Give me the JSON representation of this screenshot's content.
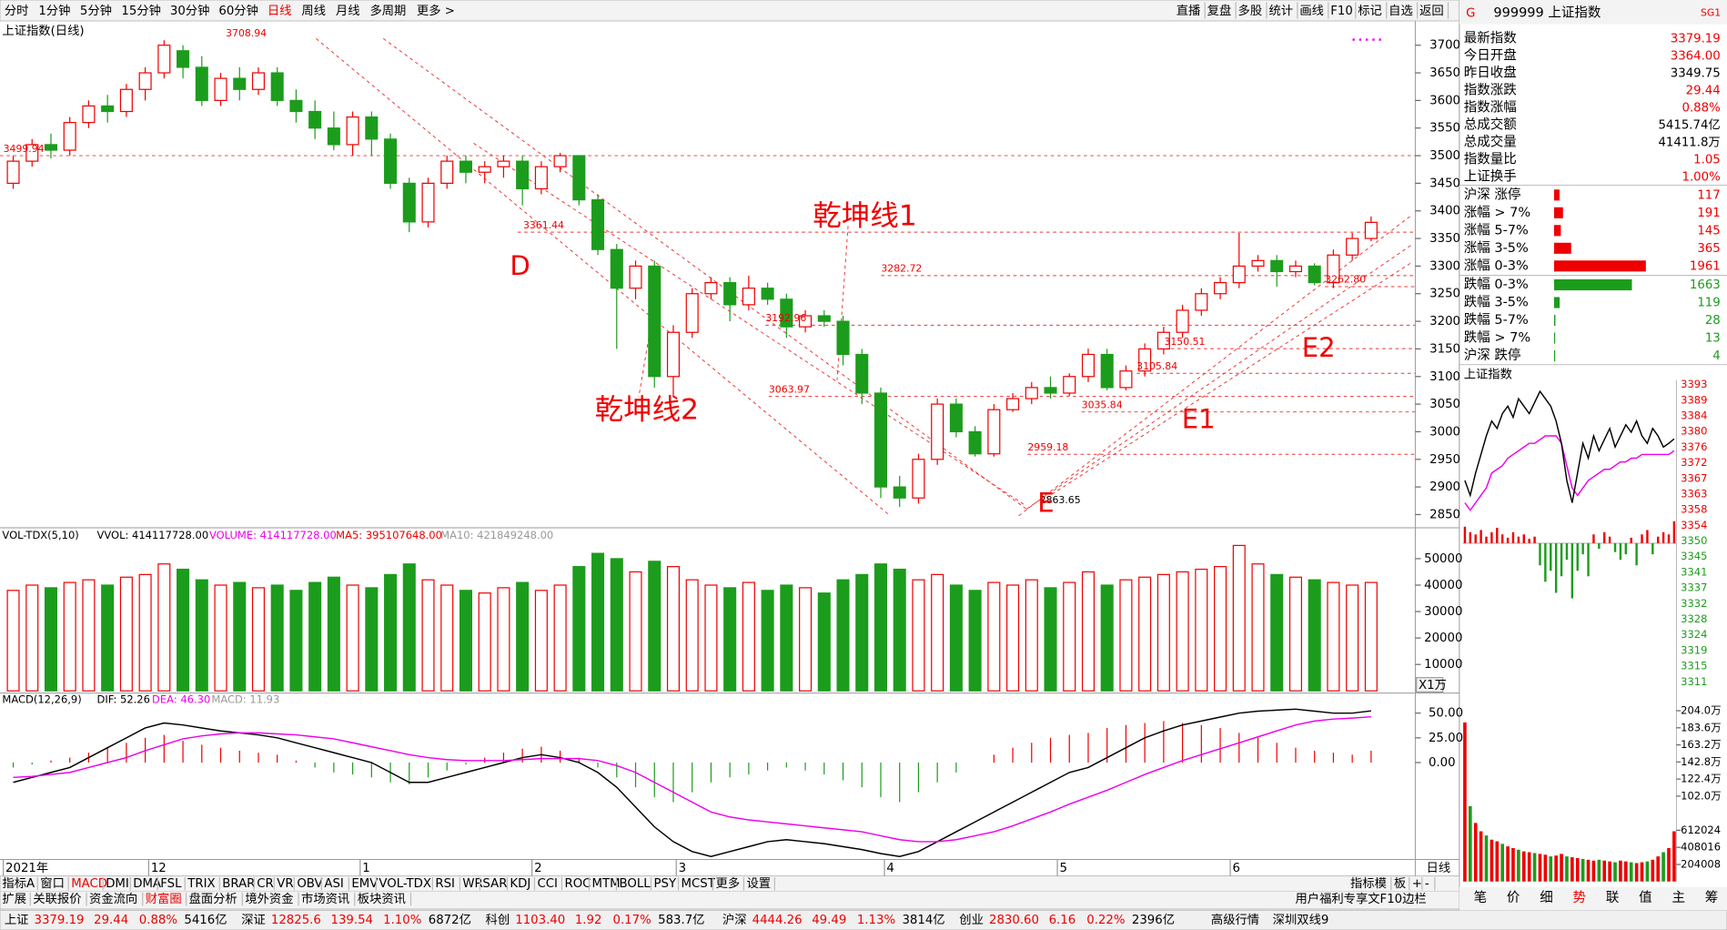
{
  "toolbar": {
    "periods": [
      "分时",
      "1分钟",
      "5分钟",
      "15分钟",
      "30分钟",
      "60分钟",
      "日线",
      "周线",
      "月线",
      "多周期",
      "更多 >"
    ],
    "tools": [
      "直播",
      "复盘",
      "多股",
      "统计",
      "画线",
      "F10",
      "标记",
      "自选",
      "返回"
    ]
  },
  "main_chart": {
    "title": "上证指数(日线)",
    "ylim": [
      2830,
      3742
    ],
    "yticks": [
      2850,
      2900,
      2950,
      3000,
      3050,
      3100,
      3150,
      3200,
      3250,
      3300,
      3350,
      3400,
      3450,
      3500,
      3550,
      3600,
      3650,
      3700
    ],
    "candles": [
      [
        3450,
        3490,
        3500,
        3440
      ],
      [
        3490,
        3520,
        3530,
        3480
      ],
      [
        3520,
        3510,
        3540,
        3495
      ],
      [
        3510,
        3560,
        3570,
        3500
      ],
      [
        3560,
        3590,
        3600,
        3550
      ],
      [
        3590,
        3580,
        3610,
        3560
      ],
      [
        3580,
        3620,
        3630,
        3570
      ],
      [
        3620,
        3650,
        3660,
        3600
      ],
      [
        3650,
        3700,
        3708.94,
        3640
      ],
      [
        3690,
        3660,
        3700,
        3640
      ],
      [
        3660,
        3600,
        3680,
        3590
      ],
      [
        3600,
        3640,
        3650,
        3590
      ],
      [
        3640,
        3620,
        3660,
        3600
      ],
      [
        3620,
        3650,
        3660,
        3610
      ],
      [
        3650,
        3600,
        3660,
        3590
      ],
      [
        3600,
        3580,
        3620,
        3560
      ],
      [
        3580,
        3550,
        3600,
        3530
      ],
      [
        3550,
        3520,
        3580,
        3510
      ],
      [
        3520,
        3570,
        3580,
        3500
      ],
      [
        3570,
        3530,
        3580,
        3500
      ],
      [
        3530,
        3450,
        3540,
        3440
      ],
      [
        3450,
        3380,
        3460,
        3361.44
      ],
      [
        3380,
        3450,
        3460,
        3370
      ],
      [
        3450,
        3490,
        3500,
        3440
      ],
      [
        3490,
        3470,
        3500,
        3450
      ],
      [
        3470,
        3480,
        3490,
        3450
      ],
      [
        3480,
        3490,
        3500,
        3460
      ],
      [
        3490,
        3440,
        3500,
        3410
      ],
      [
        3440,
        3480,
        3490,
        3430
      ],
      [
        3480,
        3500,
        3505,
        3470
      ],
      [
        3500,
        3420,
        3500,
        3410
      ],
      [
        3420,
        3330,
        3430,
        3320
      ],
      [
        3330,
        3260,
        3340,
        3150
      ],
      [
        3260,
        3300,
        3310,
        3240
      ],
      [
        3300,
        3100,
        3310,
        3080
      ],
      [
        3100,
        3180,
        3192.96,
        3063.97
      ],
      [
        3180,
        3250,
        3260,
        3170
      ],
      [
        3250,
        3270,
        3280,
        3240
      ],
      [
        3270,
        3230,
        3280,
        3200
      ],
      [
        3230,
        3260,
        3282.72,
        3220
      ],
      [
        3260,
        3240,
        3270,
        3230
      ],
      [
        3240,
        3190,
        3250,
        3170
      ],
      [
        3190,
        3210,
        3220,
        3180
      ],
      [
        3210,
        3200,
        3220,
        3190
      ],
      [
        3200,
        3140,
        3210,
        3120
      ],
      [
        3140,
        3070,
        3150,
        3050
      ],
      [
        3070,
        2900,
        3080,
        2880
      ],
      [
        2900,
        2880,
        2920,
        2863.65
      ],
      [
        2880,
        2950,
        2960,
        2870
      ],
      [
        2950,
        3050,
        3060,
        2940
      ],
      [
        3050,
        3000,
        3060,
        2990
      ],
      [
        3000,
        2960,
        3010,
        2955
      ],
      [
        2960,
        3040,
        3050,
        2955
      ],
      [
        3040,
        3060,
        3070,
        3035.84
      ],
      [
        3060,
        3080,
        3090,
        3050
      ],
      [
        3080,
        3070,
        3100,
        3060
      ],
      [
        3070,
        3100,
        3105.84,
        3065
      ],
      [
        3100,
        3140,
        3150.51,
        3090
      ],
      [
        3140,
        3080,
        3150,
        3075
      ],
      [
        3080,
        3110,
        3120,
        3075
      ],
      [
        3110,
        3150,
        3160,
        3100
      ],
      [
        3150,
        3180,
        3190,
        3140
      ],
      [
        3180,
        3220,
        3230,
        3170
      ],
      [
        3220,
        3250,
        3260,
        3210
      ],
      [
        3250,
        3270,
        3280,
        3240
      ],
      [
        3270,
        3300,
        3360,
        3260
      ],
      [
        3300,
        3310,
        3320,
        3290
      ],
      [
        3310,
        3290,
        3320,
        3262.8
      ],
      [
        3290,
        3300,
        3310,
        3280
      ],
      [
        3300,
        3270,
        3305,
        3265
      ],
      [
        3270,
        3320,
        3330,
        3260
      ],
      [
        3320,
        3350,
        3360,
        3310
      ],
      [
        3350,
        3379.19,
        3390,
        3345
      ]
    ],
    "levels": [
      3500,
      3361.44,
      3282.72,
      3262.8,
      3192.96,
      3150.51,
      3105.84,
      3063.97,
      3035.84,
      2959.18
    ],
    "price_labels": [
      3708.94,
      3499.94,
      3361.44,
      3282.72,
      3192.96,
      3063.97,
      3150.51,
      3105.84,
      3035.84,
      2959.18,
      2863.65,
      {
        "value": 3262.8,
        "label": "3262.80"
      }
    ],
    "annotations": [
      "D",
      "E",
      "E1",
      "E2",
      "乾坤线1",
      "乾坤线2"
    ],
    "dates": [
      "2021年",
      "12",
      "1",
      "2",
      "3",
      "4",
      "5",
      "6"
    ],
    "period": "日线"
  },
  "volume": {
    "legend": [
      "VOL-TDX(5,10)",
      "VVOL: 414117728.00",
      "VOLUME: 414117728.00",
      "MA5: 395107648.00",
      "MA10: 421849248.00"
    ],
    "ylim": [
      0,
      56250
    ],
    "yticks": [
      10000,
      20000,
      30000,
      40000,
      50000
    ],
    "unit": "X1万",
    "values": [
      38000,
      40000,
      39000,
      41000,
      42000,
      40000,
      43000,
      44000,
      48000,
      46000,
      42000,
      40000,
      41000,
      39000,
      40000,
      38000,
      41000,
      43000,
      40000,
      39000,
      44000,
      48000,
      42000,
      40000,
      38000,
      37000,
      39000,
      41000,
      38000,
      40000,
      47000,
      52000,
      50000,
      45000,
      49000,
      47000,
      42000,
      40000,
      39000,
      41000,
      38000,
      40000,
      39000,
      37000,
      42000,
      44000,
      48000,
      46000,
      42000,
      44000,
      40000,
      38000,
      41000,
      40000,
      42000,
      39000,
      41000,
      45000,
      40000,
      42000,
      43000,
      44000,
      45000,
      46000,
      47000,
      55000,
      48000,
      44000,
      43000,
      42000,
      41000,
      40000,
      41000
    ]
  },
  "macd": {
    "legend": [
      "MACD(12,26,9)",
      "DIF: 52.26",
      "DEA: 46.30",
      "MACD: 11.93"
    ],
    "ylim": [
      -98,
      58
    ],
    "yticks": [
      {
        "value": 50,
        "label": "50.00"
      },
      {
        "value": 25,
        "label": "25.00"
      },
      {
        "value": 0,
        "label": "0.00"
      }
    ],
    "hist": [
      -5,
      -2,
      2,
      5,
      10,
      15,
      20,
      25,
      28,
      22,
      18,
      15,
      12,
      10,
      8,
      2,
      -5,
      -10,
      -12,
      -15,
      -20,
      -22,
      -15,
      -8,
      -2,
      5,
      10,
      14,
      16,
      12,
      5,
      -5,
      -15,
      -25,
      -35,
      -40,
      -30,
      -20,
      -15,
      -12,
      -8,
      -5,
      -8,
      -12,
      -18,
      -25,
      -35,
      -40,
      -30,
      -20,
      -10,
      0,
      8,
      15,
      20,
      25,
      28,
      30,
      35,
      38,
      40,
      42,
      40,
      38,
      35,
      30,
      25,
      20,
      15,
      12,
      10,
      8,
      12
    ],
    "dif": [
      -20,
      -15,
      -10,
      -5,
      5,
      15,
      25,
      35,
      40,
      38,
      35,
      32,
      30,
      28,
      25,
      20,
      15,
      10,
      5,
      0,
      -10,
      -20,
      -20,
      -15,
      -10,
      -5,
      0,
      5,
      8,
      5,
      0,
      -10,
      -25,
      -45,
      -65,
      -80,
      -90,
      -95,
      -90,
      -85,
      -80,
      -78,
      -80,
      -82,
      -85,
      -88,
      -92,
      -95,
      -90,
      -80,
      -70,
      -60,
      -50,
      -40,
      -30,
      -20,
      -10,
      -5,
      5,
      15,
      25,
      32,
      38,
      42,
      46,
      50,
      52,
      53,
      54,
      52,
      50,
      50,
      52.26
    ],
    "dea": [
      -15,
      -14,
      -12,
      -10,
      -5,
      0,
      5,
      12,
      18,
      24,
      27,
      29,
      30,
      30,
      29,
      28,
      26,
      24,
      20,
      16,
      12,
      8,
      5,
      3,
      2,
      2,
      2,
      3,
      4,
      4,
      4,
      2,
      -3,
      -10,
      -20,
      -30,
      -40,
      -50,
      -55,
      -58,
      -60,
      -62,
      -64,
      -66,
      -68,
      -70,
      -74,
      -78,
      -80,
      -80,
      -78,
      -74,
      -70,
      -64,
      -57,
      -50,
      -42,
      -35,
      -28,
      -20,
      -12,
      -5,
      2,
      8,
      14,
      20,
      26,
      32,
      38,
      42,
      44,
      45,
      46.3
    ]
  },
  "bottom_tabs": {
    "indicators": [
      "指标A",
      "窗口",
      "MACD",
      "DMI",
      "DMA",
      "FSL",
      "TRIX",
      "BRAR",
      "CR",
      "VR",
      "OBV",
      "ASI",
      "EMV",
      "VOL-TDX",
      "RSI",
      "WR",
      "SAR",
      "KDJ",
      "CCI",
      "ROC",
      "MTM",
      "BOLL",
      "PSY",
      "MCST",
      "更多",
      "设置"
    ],
    "indicator_right": [
      "指标模",
      "板",
      "+",
      "-"
    ],
    "info": [
      "扩展",
      "关联报价",
      "资金流向",
      "财富圈",
      "盘面分析",
      "境外资金",
      "市场资讯",
      "板块资讯"
    ],
    "info_right": "用户福利专享文F10边栏"
  },
  "status_bar": {
    "markets": [
      {
        "name": "上证",
        "values": [
          "3379.19",
          "29.44",
          "0.88%",
          "5416亿"
        ]
      },
      {
        "name": "深证",
        "values": [
          "12825.6",
          "139.54",
          "1.10%",
          "6872亿"
        ]
      },
      {
        "name": "科创",
        "values": [
          "1103.40",
          "1.92",
          "0.17%",
          "583.7亿"
        ]
      },
      {
        "name": "沪深",
        "values": [
          "4444.26",
          "49.49",
          "1.13%",
          "3814亿"
        ]
      },
      {
        "name": "创业",
        "values": [
          "2830.60",
          "6.16",
          "0.22%",
          "2396亿"
        ]
      }
    ],
    "extra": [
      "高级行情",
      "深圳双线9"
    ]
  },
  "right_panel": {
    "badge": "G",
    "title": "999999 上证指数",
    "tag": "SG1",
    "quote": [
      {
        "label": "最新指数",
        "value": "3379.19"
      },
      {
        "label": "今日开盘",
        "value": "3364.00"
      },
      {
        "label": "昨日收盘",
        "value": "3349.75"
      },
      {
        "label": "指数涨跌",
        "value": "29.44"
      },
      {
        "label": "指数涨幅",
        "value": "0.88%"
      },
      {
        "label": "总成交额",
        "value": "5415.74亿"
      },
      {
        "label": "总成交量",
        "value": "41411.8万"
      },
      {
        "label": "指数量比",
        "value": "1.05"
      },
      {
        "label": "上证换手",
        "value": "1.00%"
      }
    ],
    "breadth": [
      {
        "label": "沪深 涨停",
        "value": 117
      },
      {
        "label": "涨幅 > 7%",
        "value": 191
      },
      {
        "label": "涨幅 5-7%",
        "value": 145
      },
      {
        "label": "涨幅 3-5%",
        "value": 365
      },
      {
        "label": "涨幅 0-3%",
        "value": 1961
      },
      {
        "label": "跌幅 0-3%",
        "value": 1663
      },
      {
        "label": "跌幅 3-5%",
        "value": 119
      },
      {
        "label": "跌幅 5-7%",
        "value": 28
      },
      {
        "label": "跌幅 > 7%",
        "value": 13
      },
      {
        "label": "沪深 跌停",
        "value": 4
      }
    ],
    "mini": {
      "title": "上证指数",
      "ylim": [
        3352,
        3395
      ],
      "price": [
        3368,
        3364,
        3370,
        3375,
        3380,
        3384,
        3382,
        3386,
        3388,
        3385,
        3390,
        3388,
        3386,
        3389,
        3392,
        3390,
        3388,
        3384,
        3378,
        3368,
        3362,
        3370,
        3378,
        3374,
        3380,
        3376,
        3379,
        3382,
        3377,
        3380,
        3383,
        3381,
        3384,
        3380,
        3378,
        3382,
        3380,
        3377,
        3378,
        3379.19
      ],
      "avg": [
        3362,
        3360,
        3362,
        3364,
        3366,
        3370,
        3371,
        3372,
        3374,
        3375,
        3376,
        3377,
        3378,
        3378,
        3379,
        3380,
        3380,
        3380,
        3378,
        3372,
        3366,
        3364,
        3366,
        3368,
        3369,
        3370,
        3371,
        3371,
        3372,
        3373,
        3373,
        3374,
        3374,
        3375,
        3375,
        3375,
        3375,
        3375,
        3375,
        3376
      ],
      "flow": [
        15,
        10,
        8,
        12,
        6,
        10,
        14,
        8,
        5,
        10,
        6,
        8,
        4,
        6,
        -20,
        -35,
        -25,
        -45,
        -30,
        -15,
        -50,
        -25,
        -10,
        -30,
        8,
        -5,
        10,
        6,
        -8,
        -15,
        -10,
        5,
        -20,
        8,
        12,
        -10,
        6,
        10,
        8,
        20
      ],
      "price_ticks": [
        3393,
        3389,
        3384,
        3380,
        3376,
        3372,
        3367,
        3363,
        3358,
        3354,
        3350,
        3345,
        3341,
        3337,
        3332,
        3328,
        3324,
        3319,
        3315,
        3311
      ],
      "vol_ylim": [
        0,
        2040080
      ],
      "vol_ticks": [
        {
          "value": 2040080,
          "label": "204.0万"
        },
        {
          "value": 1836072,
          "label": "183.6万"
        },
        {
          "value": 1632064,
          "label": "163.2万"
        },
        {
          "value": 1428056,
          "label": "142.8万"
        },
        {
          "value": 1224048,
          "label": "122.4万"
        },
        {
          "value": 1020040,
          "label": "102.0万"
        },
        612024,
        408016,
        204008
      ],
      "volume": [
        1900000,
        900000,
        700000,
        600000,
        550000,
        500000,
        480000,
        450000,
        420000,
        400000,
        380000,
        360000,
        350000,
        340000,
        330000,
        320000,
        300000,
        310000,
        330000,
        300000,
        290000,
        280000,
        270000,
        260000,
        250000,
        260000,
        250000,
        240000,
        230000,
        250000,
        240000,
        230000,
        220000,
        230000,
        240000,
        260000,
        300000,
        350000,
        400000,
        600000
      ]
    },
    "tabs": [
      "笔",
      "价",
      "细",
      "势",
      "联",
      "值",
      "主",
      "筹"
    ]
  }
}
